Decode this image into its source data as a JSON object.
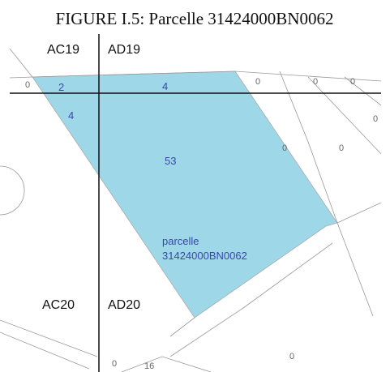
{
  "caption": "FIGURE I.5: Parcelle 31424000BN0062",
  "sections": [
    "AC19",
    "AD19",
    "AC20",
    "AD20"
  ],
  "parcel_labels": [
    "2",
    "4",
    "4",
    "53",
    "parcelle",
    "31424000BN0062"
  ],
  "other_labels": [
    "0",
    "0",
    "0",
    "0",
    "0",
    "0",
    "0",
    "0",
    "16",
    "0"
  ]
}
